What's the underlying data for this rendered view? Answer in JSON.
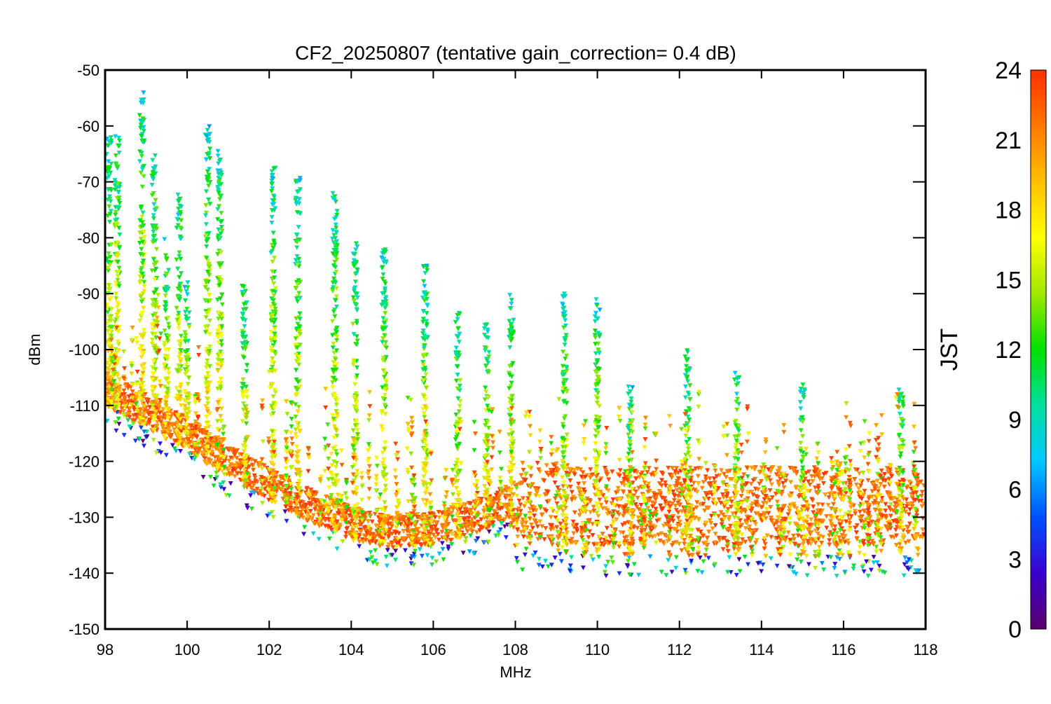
{
  "chart_data": {
    "type": "scatter",
    "title": "CF2_20250807 (tentative gain_correction=  0.4 dB)",
    "xlabel": "MHz",
    "ylabel": "dBm",
    "xlim": [
      98,
      118
    ],
    "ylim": [
      -150,
      -50
    ],
    "xticks": [
      "98",
      "100",
      "102",
      "104",
      "106",
      "108",
      "110",
      "112",
      "114",
      "116",
      "118"
    ],
    "yticks": [
      "-50",
      "-60",
      "-70",
      "-80",
      "-90",
      "-100",
      "-110",
      "-120",
      "-130",
      "-140",
      "-150"
    ],
    "grid": false,
    "marker": "down-triangle",
    "colorbar": {
      "label": "JST",
      "range": [
        0,
        24
      ],
      "ticks": [
        "0",
        "3",
        "6",
        "9",
        "12",
        "15",
        "18",
        "21",
        "24"
      ],
      "colormap": [
        "#5a006a",
        "#3a00d0",
        "#0050ff",
        "#00c8ff",
        "#00e0a0",
        "#00e000",
        "#a0e800",
        "#ffff00",
        "#ffc000",
        "#ff7800",
        "#ff3000"
      ]
    },
    "noise_floor": {
      "description": "lower envelope of measurements (dBm)",
      "x": [
        98,
        99,
        100,
        101,
        102,
        103,
        104,
        104.5,
        105,
        106,
        107,
        107.9,
        108,
        110,
        112,
        114,
        116,
        118
      ],
      "y": [
        -110,
        -114,
        -118,
        -123,
        -127,
        -131,
        -134,
        -135,
        -135.5,
        -135,
        -133,
        -130,
        -136,
        -137,
        -137,
        -137,
        -137,
        -137
      ]
    },
    "signal_peaks": {
      "description": "approximate maximum observed level of strong signals",
      "x": [
        98.1,
        98.3,
        98.9,
        99.2,
        99.5,
        99.8,
        100.0,
        100.5,
        100.8,
        101.4,
        102.1,
        102.7,
        103.6,
        104.1,
        104.8,
        105.8,
        106.6,
        107.3,
        107.9,
        109.2,
        110.0,
        110.8,
        112.2,
        113.4,
        115.0,
        117.4
      ],
      "y": [
        -62,
        -61,
        -54,
        -65,
        -80,
        -72,
        -87,
        -60,
        -63,
        -88,
        -67,
        -69,
        -71,
        -81,
        -82,
        -85,
        -93,
        -95,
        -89,
        -90,
        -91,
        -106,
        -100,
        -104,
        -106,
        -106
      ]
    }
  }
}
